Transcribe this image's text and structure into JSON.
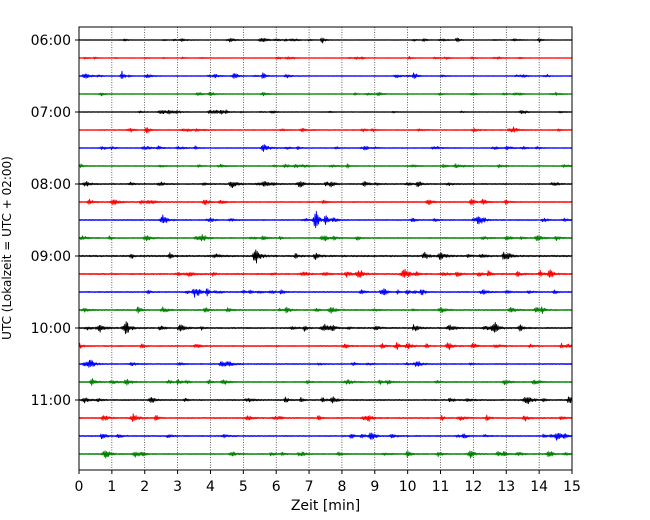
{
  "chart_data": {
    "type": "line",
    "title": "",
    "xlabel": "Zeit  [min]",
    "ylabel": "UTC (Lokalzeit = UTC + 02:00)",
    "xlim": [
      0,
      15
    ],
    "x_ticks": [
      0,
      1,
      2,
      3,
      4,
      5,
      6,
      7,
      8,
      9,
      10,
      11,
      12,
      13,
      14,
      15
    ],
    "x_grid": true,
    "y_tick_labels": [
      "06:00",
      "07:00",
      "08:00",
      "09:00",
      "10:00",
      "11:00"
    ],
    "trace_colors": [
      "#000000",
      "#ff0000",
      "#0000ff",
      "#008000"
    ],
    "traces_per_hour": 4,
    "minutes_per_trace": 15,
    "first_trace": "06:00",
    "traces": [
      {
        "start": "06:00",
        "amplitude": 0.25,
        "color": "#000000",
        "events": [
          {
            "t": 7.4,
            "a": 0.8
          },
          {
            "t": 11.5,
            "a": 0.6
          },
          {
            "t": 14.0,
            "a": 0.6
          }
        ]
      },
      {
        "start": "06:15",
        "amplitude": 0.25,
        "color": "#ff0000",
        "events": []
      },
      {
        "start": "06:30",
        "amplitude": 0.3,
        "color": "#0000ff",
        "events": [
          {
            "t": 1.3,
            "a": 1.2
          },
          {
            "t": 5.6,
            "a": 0.8
          },
          {
            "t": 10.2,
            "a": 1.0
          }
        ]
      },
      {
        "start": "06:45",
        "amplitude": 0.3,
        "color": "#008000",
        "events": []
      },
      {
        "start": "07:00",
        "amplitude": 0.3,
        "color": "#000000",
        "events": []
      },
      {
        "start": "07:15",
        "amplitude": 0.4,
        "color": "#ff0000",
        "events": []
      },
      {
        "start": "07:30",
        "amplitude": 0.35,
        "color": "#0000ff",
        "events": [
          {
            "t": 8.7,
            "a": 0.6
          }
        ]
      },
      {
        "start": "07:45",
        "amplitude": 0.4,
        "color": "#008000",
        "events": []
      },
      {
        "start": "08:00",
        "amplitude": 0.5,
        "color": "#000000",
        "events": [
          {
            "t": 10.3,
            "a": 0.8
          }
        ]
      },
      {
        "start": "08:15",
        "amplitude": 0.5,
        "color": "#ff0000",
        "events": []
      },
      {
        "start": "08:30",
        "amplitude": 0.45,
        "color": "#0000ff",
        "events": [
          {
            "t": 7.2,
            "a": 2.6
          },
          {
            "t": 7.5,
            "a": 1.2
          }
        ]
      },
      {
        "start": "08:45",
        "amplitude": 0.5,
        "color": "#008000",
        "events": []
      },
      {
        "start": "09:00",
        "amplitude": 0.7,
        "color": "#000000",
        "events": []
      },
      {
        "start": "09:15",
        "amplitude": 0.65,
        "color": "#ff0000",
        "events": []
      },
      {
        "start": "09:30",
        "amplitude": 0.5,
        "color": "#0000ff",
        "events": [
          {
            "t": 3.5,
            "a": 1.3
          },
          {
            "t": 3.9,
            "a": 0.8
          },
          {
            "t": 9.2,
            "a": 0.7
          }
        ]
      },
      {
        "start": "09:45",
        "amplitude": 0.55,
        "color": "#008000",
        "events": []
      },
      {
        "start": "10:00",
        "amplitude": 0.6,
        "color": "#000000",
        "events": [
          {
            "t": 7.7,
            "a": 0.8
          }
        ]
      },
      {
        "start": "10:15",
        "amplitude": 0.5,
        "color": "#ff0000",
        "events": []
      },
      {
        "start": "10:30",
        "amplitude": 0.45,
        "color": "#0000ff",
        "events": []
      },
      {
        "start": "10:45",
        "amplitude": 0.5,
        "color": "#008000",
        "events": []
      },
      {
        "start": "11:00",
        "amplitude": 0.55,
        "color": "#000000",
        "events": [
          {
            "t": 7.4,
            "a": 0.7
          }
        ]
      },
      {
        "start": "11:15",
        "amplitude": 0.55,
        "color": "#ff0000",
        "events": []
      },
      {
        "start": "11:30",
        "amplitude": 0.5,
        "color": "#0000ff",
        "events": []
      },
      {
        "start": "11:45",
        "amplitude": 0.5,
        "color": "#008000",
        "events": [
          {
            "t": 10.0,
            "a": 0.8
          }
        ]
      }
    ]
  }
}
